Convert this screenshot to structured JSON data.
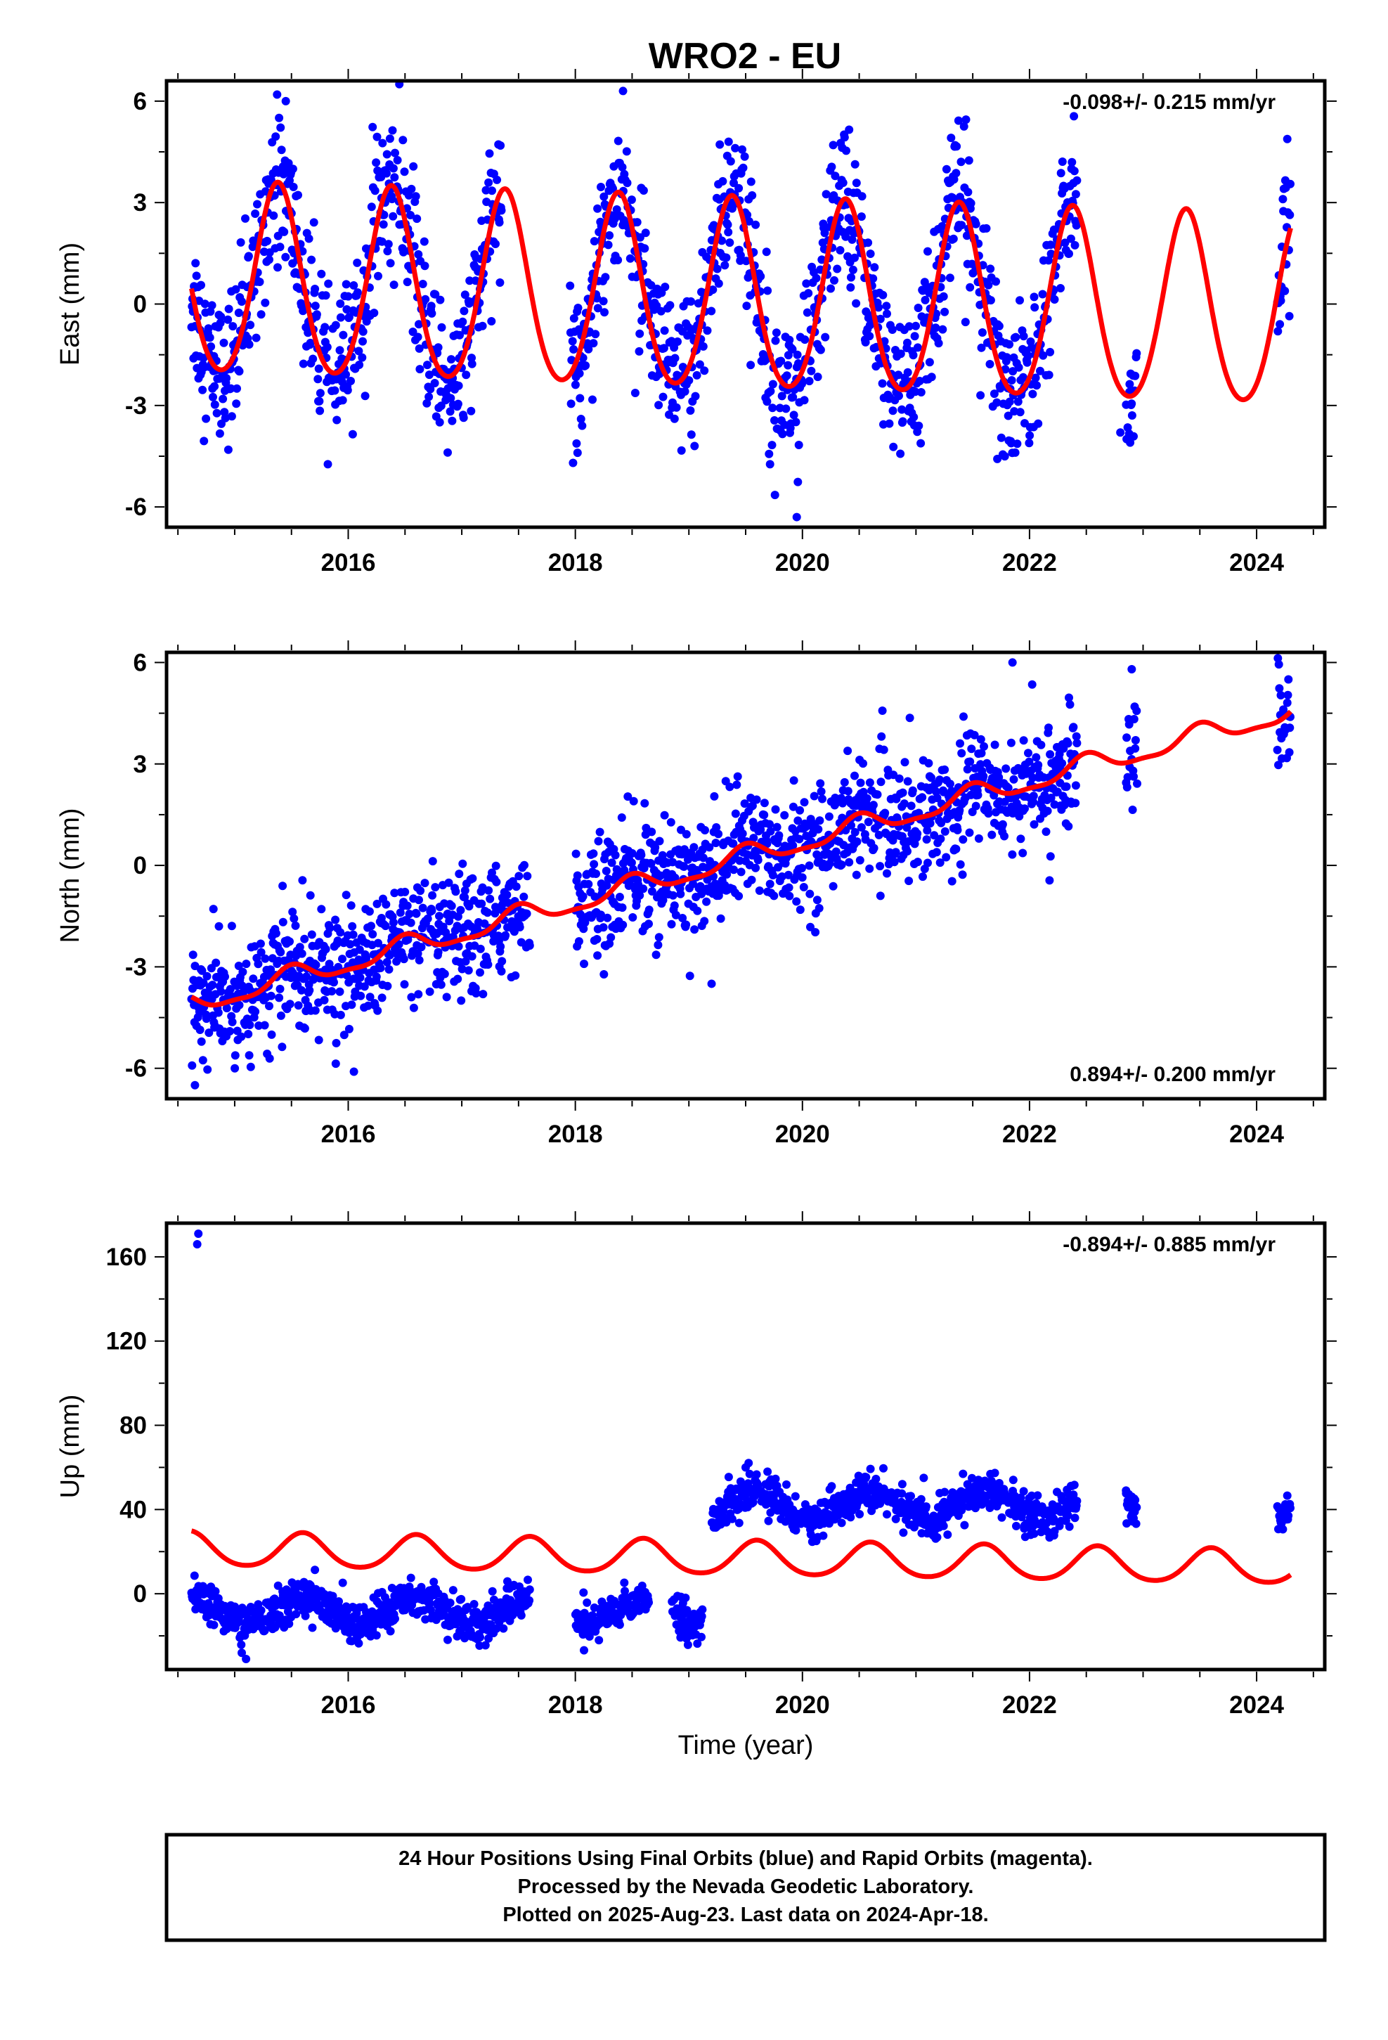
{
  "title": "WRO2 - EU",
  "footer": {
    "lines": [
      "24 Hour Positions Using Final Orbits (blue) and Rapid Orbits (magenta).",
      "Processed by the Nevada Geodetic Laboratory.",
      "Plotted on 2025-Aug-23. Last data on 2024-Apr-18."
    ]
  },
  "colors": {
    "data_points": "#0000ff",
    "model_fit": "#ff0000",
    "frame": "#000000"
  },
  "chart_data": [
    {
      "type": "scatter",
      "panel": "east",
      "ylabel": "East (mm)",
      "xlabel": "",
      "xlim": [
        2014.4,
        2024.6
      ],
      "ylim": [
        -6.6,
        6.6
      ],
      "x_ticks": [
        2016,
        2018,
        2020,
        2022,
        2024
      ],
      "x_tick_labels": [
        "2016",
        "2018",
        "2020",
        "2022",
        "2024"
      ],
      "y_ticks": [
        -6,
        -3,
        0,
        3,
        6
      ],
      "y_tick_labels": [
        "-6",
        "-3",
        "0",
        "3",
        "6"
      ],
      "rate_label": "-0.098+/- 0.215 mm/yr",
      "rate_position": "top-right",
      "data_range": [
        2014.62,
        2024.3
      ],
      "gaps": [
        [
          2017.35,
          2017.95
        ],
        [
          2022.42,
          2022.85
        ],
        [
          2022.95,
          2024.18
        ]
      ],
      "model": {
        "offset": 0.15,
        "trend": -0.098,
        "annual_amplitude": 2.8,
        "annual_peak_phase": 0.38,
        "semiannual_amplitude": 0.3
      },
      "noise_sd": 1.1,
      "extra_points": [
        {
          "x": 2018.05,
          "y": -3.4
        },
        {
          "x": 2018.06,
          "y": -3.6
        },
        {
          "x": 2019.05,
          "y": -4.2
        },
        {
          "x": 2019.95,
          "y": -6.3
        },
        {
          "x": 2022.8,
          "y": -3.8
        },
        {
          "x": 2022.88,
          "y": -2.6
        },
        {
          "x": 2015.45,
          "y": 6.0
        },
        {
          "x": 2016.45,
          "y": 6.5
        },
        {
          "x": 2018.42,
          "y": 6.3
        },
        {
          "x": 2019.35,
          "y": 4.8
        }
      ]
    },
    {
      "type": "scatter",
      "panel": "north",
      "ylabel": "North (mm)",
      "xlabel": "",
      "xlim": [
        2014.4,
        2024.6
      ],
      "ylim": [
        -6.9,
        6.3
      ],
      "x_ticks": [
        2016,
        2018,
        2020,
        2022,
        2024
      ],
      "x_tick_labels": [
        "2016",
        "2018",
        "2020",
        "2022",
        "2024"
      ],
      "y_ticks": [
        -6,
        -3,
        0,
        3,
        6
      ],
      "y_tick_labels": [
        "-6",
        "-3",
        "0",
        "3",
        "6"
      ],
      "rate_label": "0.894+/- 0.200 mm/yr",
      "rate_position": "bottom-right",
      "data_range": [
        2014.62,
        2024.3
      ],
      "gaps": [
        [
          2017.6,
          2018.0
        ],
        [
          2022.42,
          2022.85
        ],
        [
          2022.95,
          2024.18
        ]
      ],
      "model": {
        "offset": -0.2,
        "trend": 0.894,
        "annual_amplitude": 0.3,
        "annual_peak_phase": 0.5,
        "semiannual_amplitude": 0.1
      },
      "noise_sd": 0.85,
      "extra_points": [
        {
          "x": 2014.65,
          "y": -6.5
        },
        {
          "x": 2016.05,
          "y": -6.1
        },
        {
          "x": 2019.2,
          "y": -3.5
        },
        {
          "x": 2021.85,
          "y": 6.0
        },
        {
          "x": 2022.9,
          "y": 5.8
        },
        {
          "x": 2024.28,
          "y": 5.5
        }
      ]
    },
    {
      "type": "scatter",
      "panel": "up",
      "ylabel": "Up (mm)",
      "xlabel": "Time (year)",
      "xlim": [
        2014.4,
        2024.6
      ],
      "ylim": [
        -36,
        176
      ],
      "x_ticks": [
        2016,
        2018,
        2020,
        2022,
        2024
      ],
      "x_tick_labels": [
        "2016",
        "2018",
        "2020",
        "2022",
        "2024"
      ],
      "y_ticks": [
        0,
        40,
        80,
        120,
        160
      ],
      "y_tick_labels": [
        "0",
        "40",
        "80",
        "120",
        "160"
      ],
      "rate_label": "-0.894+/- 0.885 mm/yr",
      "rate_position": "top-right",
      "data_range": [
        2014.62,
        2024.3
      ],
      "gaps": [
        [
          2017.6,
          2018.0
        ],
        [
          2018.65,
          2018.85
        ],
        [
          2019.12,
          2019.2
        ],
        [
          2022.42,
          2022.85
        ],
        [
          2022.95,
          2024.18
        ]
      ],
      "model": {
        "offset": 17.0,
        "trend": -0.894,
        "annual_amplitude": 8.0,
        "annual_peak_phase": 0.6,
        "semiannual_amplitude": 1.0
      },
      "data_model": {
        "offset_before": -8.0,
        "offset_after": 42.0,
        "step_epoch": 2019.15,
        "noise_sd": 4.5
      },
      "extra_points": [
        {
          "x": 2014.67,
          "y": 166
        },
        {
          "x": 2014.68,
          "y": 171
        },
        {
          "x": 2015.1,
          "y": -31
        },
        {
          "x": 2019.5,
          "y": 60
        },
        {
          "x": 2022.85,
          "y": 49
        },
        {
          "x": 2022.92,
          "y": 40
        }
      ]
    }
  ]
}
